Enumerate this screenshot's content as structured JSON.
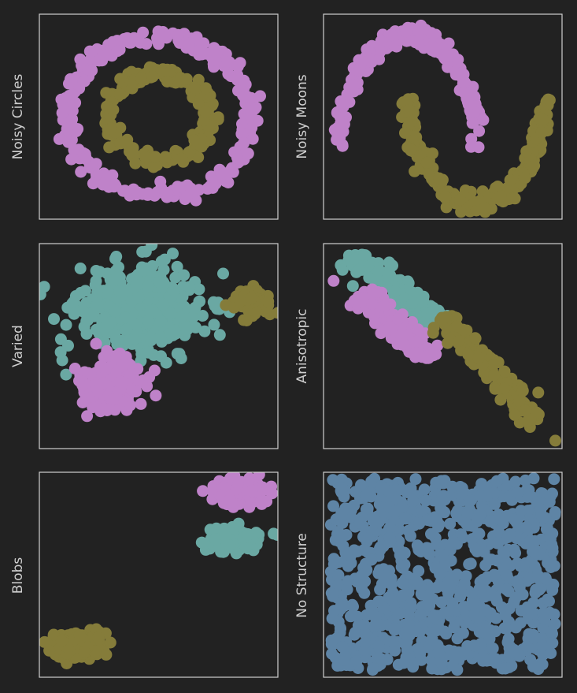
{
  "page": {
    "background": "#222222",
    "frame_color": "#cfcfcf",
    "label_color": "#cfcfcf"
  },
  "colors": {
    "violet": "#bf82c9",
    "olive": "#857c3a",
    "teal": "#6aa8a3",
    "steel": "#5e84a5"
  },
  "chart_data": [
    {
      "type": "scatter",
      "ylabel": "Noisy Circles",
      "grid": false,
      "legend": "none",
      "xlim": [
        -1.3,
        1.3
      ],
      "ylim": [
        -1.3,
        1.3
      ],
      "series": [
        {
          "color": "#bf82c9",
          "shape": "ring",
          "cx": 0,
          "cy": 0,
          "radius": 1.0,
          "noise": 0.05,
          "n": 260,
          "seed": 11
        },
        {
          "color": "#857c3a",
          "shape": "ring",
          "cx": 0,
          "cy": 0,
          "radius": 0.55,
          "noise": 0.05,
          "n": 200,
          "seed": 12
        }
      ]
    },
    {
      "type": "scatter",
      "ylabel": "Noisy Moons",
      "grid": false,
      "legend": "none",
      "xlim": [
        -1.25,
        2.25
      ],
      "ylim": [
        -0.7,
        1.2
      ],
      "series": [
        {
          "color": "#bf82c9",
          "shape": "upper-moon",
          "noise": 0.05,
          "n": 220,
          "seed": 21
        },
        {
          "color": "#857c3a",
          "shape": "lower-moon",
          "noise": 0.05,
          "n": 220,
          "seed": 22
        }
      ]
    },
    {
      "type": "scatter",
      "ylabel": "Varied",
      "grid": false,
      "legend": "none",
      "xlim": [
        -11.2,
        4.0
      ],
      "ylim": [
        -8.6,
        7.0
      ],
      "series": [
        {
          "color": "#6aa8a3",
          "shape": "gaussian",
          "cx": -4.7,
          "cy": 1.9,
          "sx": 1.95,
          "sy": 1.6,
          "n": 520,
          "seed": 31
        },
        {
          "color": "#857c3a",
          "shape": "gaussian",
          "cx": 2.4,
          "cy": 2.6,
          "sx": 0.55,
          "sy": 0.5,
          "n": 110,
          "seed": 32
        },
        {
          "color": "#bf82c9",
          "shape": "gaussian",
          "cx": -6.5,
          "cy": -3.8,
          "sx": 0.95,
          "sy": 1.0,
          "n": 210,
          "seed": 33
        }
      ]
    },
    {
      "type": "scatter",
      "ylabel": "Anisotropic",
      "grid": false,
      "legend": "none",
      "xlim": [
        -3.9,
        3.2
      ],
      "ylim": [
        -3.6,
        4.1
      ],
      "series": [
        {
          "color": "#6aa8a3",
          "shape": "line-cluster",
          "x0": -3.1,
          "y0": 3.7,
          "x1": -0.4,
          "y1": 1.1,
          "spread": 0.22,
          "n": 160,
          "seed": 41
        },
        {
          "color": "#bf82c9",
          "shape": "line-cluster",
          "x0": -2.8,
          "y0": 2.2,
          "x1": -0.7,
          "y1": -0.2,
          "spread": 0.22,
          "n": 160,
          "seed": 42
        },
        {
          "color": "#857c3a",
          "shape": "line-cluster",
          "x0": -0.4,
          "y0": 1.3,
          "x1": 2.5,
          "y1": -2.6,
          "spread": 0.2,
          "n": 150,
          "seed": 43
        }
      ],
      "outliers": [
        {
          "color": "#bf82c9",
          "x": -3.6,
          "y": 2.7
        },
        {
          "color": "#857c3a",
          "x": 3.0,
          "y": -3.3
        }
      ]
    },
    {
      "type": "scatter",
      "ylabel": "Blobs",
      "grid": false,
      "legend": "none",
      "xlim": [
        -11.5,
        4.0
      ],
      "ylim": [
        -12.0,
        7.0
      ],
      "series": [
        {
          "color": "#bf82c9",
          "shape": "gaussian",
          "cx": 1.3,
          "cy": 5.2,
          "sx": 0.8,
          "sy": 0.6,
          "n": 170,
          "seed": 51
        },
        {
          "color": "#6aa8a3",
          "shape": "gaussian",
          "cx": 1.3,
          "cy": 0.8,
          "sx": 0.8,
          "sy": 0.6,
          "n": 170,
          "seed": 52
        },
        {
          "color": "#857c3a",
          "shape": "gaussian",
          "cx": -9.0,
          "cy": -9.0,
          "sx": 0.8,
          "sy": 0.6,
          "n": 170,
          "seed": 53
        }
      ]
    },
    {
      "type": "scatter",
      "ylabel": "No Structure",
      "grid": false,
      "legend": "none",
      "xlim": [
        -0.03,
        1.03
      ],
      "ylim": [
        -0.03,
        1.03
      ],
      "series": [
        {
          "color": "#5e84a5",
          "shape": "uniform",
          "n": 900,
          "seed": 61
        }
      ]
    }
  ]
}
